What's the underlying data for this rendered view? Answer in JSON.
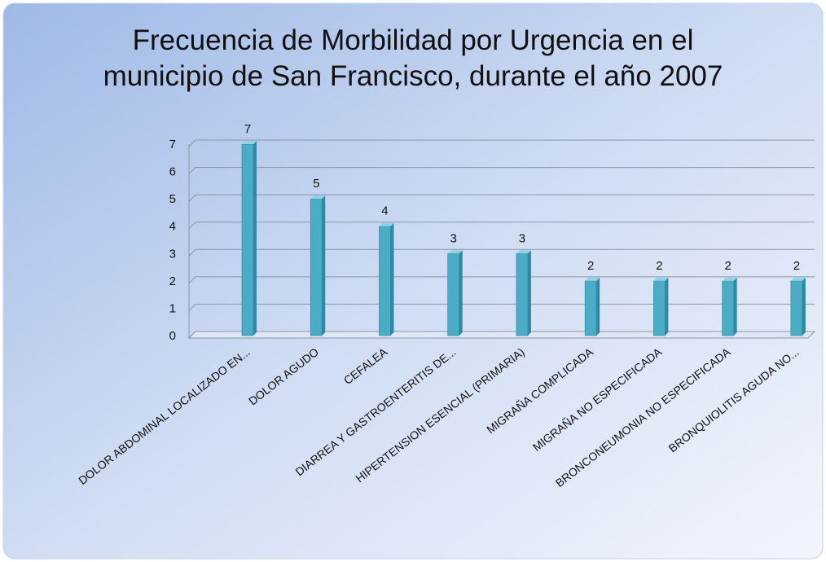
{
  "chart_data": {
    "type": "bar3d",
    "title": "Frecuencia de Morbilidad por Urgencia en el municipio de San Francisco, durante el año 2007",
    "categories": [
      "DOLOR ABDOMINAL LOCALIZADO EN...",
      "DOLOR AGUDO",
      "CEFALEA",
      "DIARREA Y GASTROENTERITIS DE...",
      "HIPERTENSION ESENCIAL (PRIMARIA)",
      "MIGRAÑA COMPLICADA",
      "MIGRAÑA  NO ESPECIFICADA",
      "BRONCONEUMONIA  NO ESPECIFICADA",
      "BRONQUIOLITIS AGUDA  NO..."
    ],
    "values": [
      7,
      5,
      4,
      3,
      3,
      2,
      2,
      2,
      2
    ],
    "color": "#4bacc6",
    "ylim": [
      0,
      7
    ],
    "yticks": [
      0,
      1,
      2,
      3,
      4,
      5,
      6,
      7
    ],
    "grid": true
  }
}
